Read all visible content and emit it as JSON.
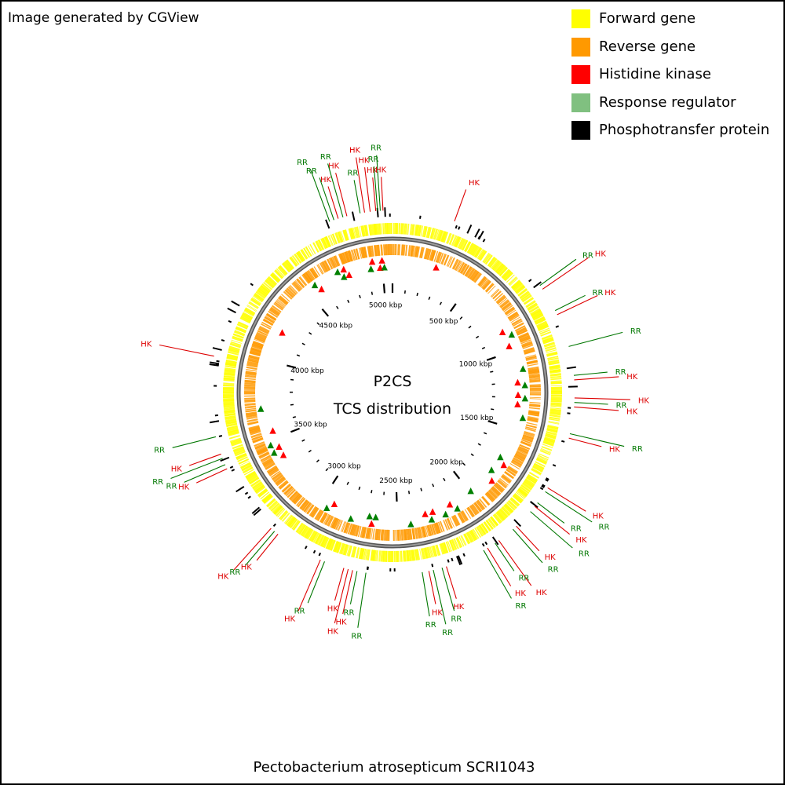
{
  "header": {
    "credit": "Image generated by CGView"
  },
  "legend": [
    {
      "label": "Forward gene",
      "color": "#ffff00"
    },
    {
      "label": "Reverse gene",
      "color": "#ff9900"
    },
    {
      "label": "Histidine kinase",
      "color": "#ff0000"
    },
    {
      "label": "Response regulator",
      "color": "#80c080"
    },
    {
      "label": "Phosphotransfer protein",
      "color": "#000000"
    }
  ],
  "map": {
    "title_line1": "P2CS",
    "title_line2": "TCS distribution",
    "genome_length_kbp": 5064,
    "scale_labels": [
      "500 kbp",
      "1000 kbp",
      "1500 kbp",
      "2000 kbp",
      "2500 kbp",
      "3000 kbp",
      "3500 kbp",
      "4000 kbp",
      "4500 kbp",
      "5000 kbp"
    ],
    "label_colors": {
      "HK": "#dd0000",
      "RR": "#007700"
    },
    "feature_labels": [
      {
        "t": "HK",
        "p": 4990
      },
      {
        "t": "RR",
        "p": 4998
      },
      {
        "t": "RR",
        "p": 5010
      },
      {
        "t": "HK",
        "p": 5022
      },
      {
        "t": "HK",
        "p": 4965
      },
      {
        "t": "HK",
        "p": 4940
      },
      {
        "t": "RR",
        "p": 4920
      },
      {
        "t": "HK",
        "p": 4860
      },
      {
        "t": "RR",
        "p": 4842
      },
      {
        "t": "HK",
        "p": 4820
      },
      {
        "t": "RR",
        "p": 4800
      },
      {
        "t": "RR",
        "p": 4780
      },
      {
        "t": "HK",
        "p": 280
      },
      {
        "t": "RR",
        "p": 760
      },
      {
        "t": "HK",
        "p": 780
      },
      {
        "t": "RR",
        "p": 890
      },
      {
        "t": "HK",
        "p": 910
      },
      {
        "t": "RR",
        "p": 1060
      },
      {
        "t": "RR",
        "p": 1190
      },
      {
        "t": "HK",
        "p": 1210
      },
      {
        "t": "HK",
        "p": 1290
      },
      {
        "t": "RR",
        "p": 1310
      },
      {
        "t": "HK",
        "p": 1330
      },
      {
        "t": "RR",
        "p": 1450
      },
      {
        "t": "HK",
        "p": 1470
      },
      {
        "t": "HK",
        "p": 1710
      },
      {
        "t": "RR",
        "p": 1730
      },
      {
        "t": "RR",
        "p": 1790
      },
      {
        "t": "HK",
        "p": 1810
      },
      {
        "t": "RR",
        "p": 1840
      },
      {
        "t": "HK",
        "p": 1930
      },
      {
        "t": "RR",
        "p": 1950
      },
      {
        "t": "HK",
        "p": 2030
      },
      {
        "t": "RR",
        "p": 2050
      },
      {
        "t": "HK",
        "p": 2090
      },
      {
        "t": "RR",
        "p": 2110
      },
      {
        "t": "HK",
        "p": 2290
      },
      {
        "t": "RR",
        "p": 2310
      },
      {
        "t": "RR",
        "p": 2350
      },
      {
        "t": "HK",
        "p": 2370
      },
      {
        "t": "RR",
        "p": 2400
      },
      {
        "t": "RR",
        "p": 2650
      },
      {
        "t": "RR",
        "p": 2690
      },
      {
        "t": "HK",
        "p": 2710
      },
      {
        "t": "HK",
        "p": 2730
      },
      {
        "t": "HK",
        "p": 2750
      },
      {
        "t": "RR",
        "p": 2840
      },
      {
        "t": "HK",
        "p": 2860
      },
      {
        "t": "HK",
        "p": 3080
      },
      {
        "t": "RR",
        "p": 3100
      },
      {
        "t": "HK",
        "p": 3120
      },
      {
        "t": "HK",
        "p": 3450
      },
      {
        "t": "RR",
        "p": 3470
      },
      {
        "t": "RR",
        "p": 3500
      },
      {
        "t": "HK",
        "p": 3520
      },
      {
        "t": "RR",
        "p": 3600
      },
      {
        "t": "HK",
        "p": 3960
      }
    ],
    "markers": [
      {
        "t": "HK",
        "p": 4985
      },
      {
        "t": "HK",
        "p": 5000
      },
      {
        "t": "RR",
        "p": 5012
      },
      {
        "t": "HK",
        "p": 4940
      },
      {
        "t": "RR",
        "p": 4925
      },
      {
        "t": "HK",
        "p": 270
      },
      {
        "t": "HK",
        "p": 4780
      },
      {
        "t": "HK",
        "p": 4760
      },
      {
        "t": "RR",
        "p": 4745
      },
      {
        "t": "RR",
        "p": 4720
      },
      {
        "t": "HK",
        "p": 860
      },
      {
        "t": "RR",
        "p": 900
      },
      {
        "t": "HK",
        "p": 960
      },
      {
        "t": "RR",
        "p": 1120
      },
      {
        "t": "HK",
        "p": 1200
      },
      {
        "t": "RR",
        "p": 1220
      },
      {
        "t": "HK",
        "p": 1280
      },
      {
        "t": "RR",
        "p": 1300
      },
      {
        "t": "HK",
        "p": 1340
      },
      {
        "t": "RR",
        "p": 1420
      },
      {
        "t": "RR",
        "p": 1700
      },
      {
        "t": "HK",
        "p": 1730
      },
      {
        "t": "RR",
        "p": 1800
      },
      {
        "t": "HK",
        "p": 1850
      },
      {
        "t": "RR",
        "p": 1990
      },
      {
        "t": "RR",
        "p": 2120
      },
      {
        "t": "HK",
        "p": 2150
      },
      {
        "t": "RR",
        "p": 2200
      },
      {
        "t": "HK",
        "p": 2270
      },
      {
        "t": "RR",
        "p": 2290
      },
      {
        "t": "HK",
        "p": 2320
      },
      {
        "t": "RR",
        "p": 2420
      },
      {
        "t": "RR",
        "p": 2640
      },
      {
        "t": "HK",
        "p": 2660
      },
      {
        "t": "RR",
        "p": 2680
      },
      {
        "t": "RR",
        "p": 2790
      },
      {
        "t": "HK",
        "p": 2920
      },
      {
        "t": "RR",
        "p": 2950
      },
      {
        "t": "HK",
        "p": 3380
      },
      {
        "t": "RR",
        "p": 3420
      },
      {
        "t": "HK",
        "p": 3440
      },
      {
        "t": "RR",
        "p": 3470
      },
      {
        "t": "HK",
        "p": 3550
      },
      {
        "t": "RR",
        "p": 3700
      },
      {
        "t": "HK",
        "p": 4200
      },
      {
        "t": "RR",
        "p": 4560
      },
      {
        "t": "HK",
        "p": 4580
      }
    ]
  },
  "footer": {
    "organism": "Pectobacterium atrosepticum SCRI1043"
  }
}
